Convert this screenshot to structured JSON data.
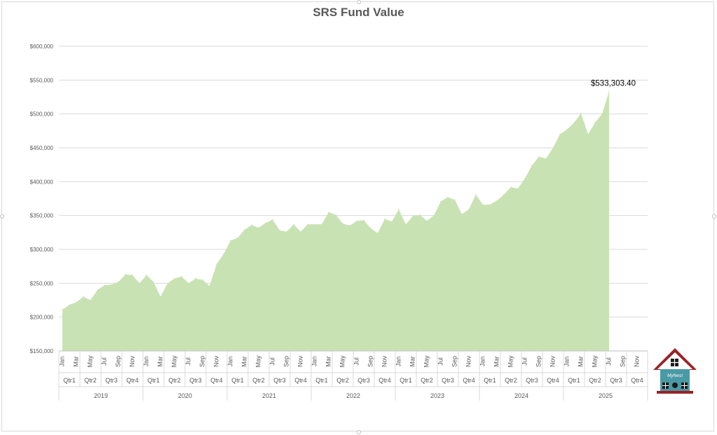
{
  "chart_data": {
    "type": "area",
    "title": "SRS Fund Value",
    "xlabel": "",
    "ylabel": "",
    "ylim": [
      150000,
      600000
    ],
    "y_ticks": [
      150000,
      200000,
      250000,
      300000,
      350000,
      400000,
      450000,
      500000,
      550000,
      600000
    ],
    "y_tick_labels": [
      "$150,000",
      "$200,000",
      "$250,000",
      "$300,000",
      "$350,000",
      "$400,000",
      "$450,000",
      "$500,000",
      "$550,000",
      "$600,000"
    ],
    "years": [
      "2019",
      "2020",
      "2021",
      "2022",
      "2023",
      "2024",
      "2025"
    ],
    "quarter_labels": [
      "Qtr1",
      "Qtr2",
      "Qtr3",
      "Qtr4"
    ],
    "month_labels": [
      "Jan",
      "Mar",
      "May",
      "Jul",
      "Sep",
      "Nov"
    ],
    "series": [
      {
        "color": "#c9e2b3",
        "values": [
          211000,
          218000,
          222000,
          230000,
          225000,
          240000,
          247000,
          248000,
          252000,
          263000,
          262000,
          250000,
          262000,
          252000,
          230000,
          250000,
          257000,
          260000,
          250000,
          257000,
          255000,
          246000,
          278000,
          293000,
          313000,
          317000,
          329000,
          336000,
          332000,
          339000,
          344000,
          328000,
          326000,
          337000,
          326000,
          337000,
          337000,
          337000,
          355000,
          351000,
          338000,
          335000,
          342000,
          343000,
          331000,
          324000,
          345000,
          341000,
          359000,
          337000,
          349000,
          351000,
          342000,
          350000,
          371000,
          377000,
          373000,
          352000,
          359000,
          381000,
          366000,
          366000,
          372000,
          381000,
          392000,
          390000,
          405000,
          424000,
          437000,
          434000,
          450000,
          470000,
          477000,
          487000,
          501000,
          470000,
          487000,
          500000,
          533303.4
        ]
      }
    ],
    "annotations": [
      {
        "label": "$533,303.40",
        "month_index": 78
      }
    ],
    "grid": true,
    "legend": "none"
  },
  "logo": {
    "text": "MyNest",
    "wall_color": "#4a9aa5",
    "roof_color": "#9b2226"
  }
}
